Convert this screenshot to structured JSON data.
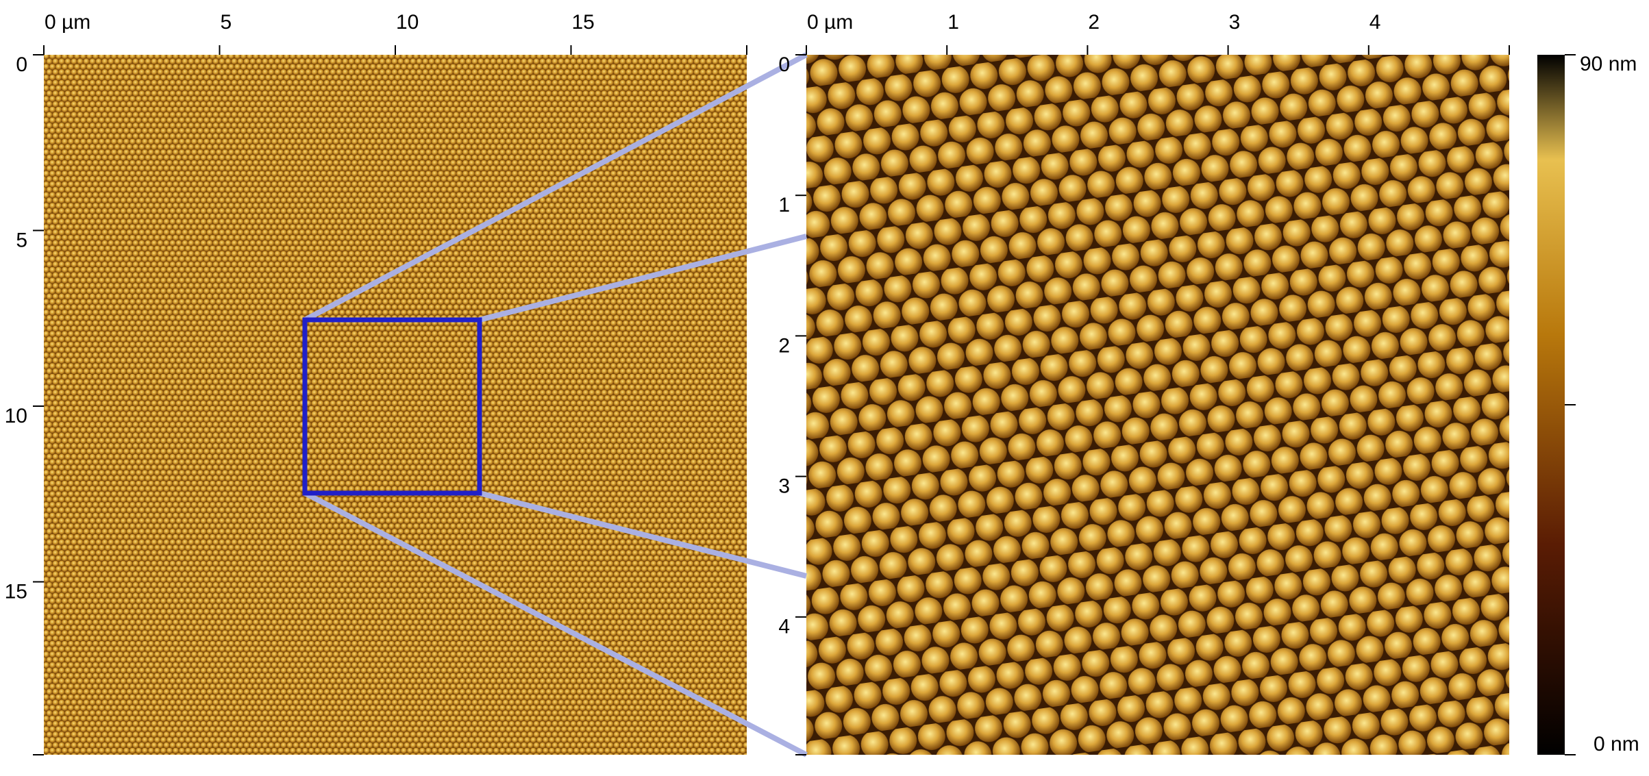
{
  "left_panel": {
    "x_ticks": [
      "0 µm",
      "5",
      "10",
      "15"
    ],
    "y_ticks": [
      "0",
      "5",
      "10",
      "15"
    ]
  },
  "right_panel": {
    "x_ticks": [
      "0 µm",
      "1",
      "2",
      "3",
      "4"
    ],
    "y_ticks": [
      "0",
      "1",
      "2",
      "3",
      "4"
    ]
  },
  "colorbar": {
    "max_label": "90 nm",
    "min_label": "0 nm"
  }
}
